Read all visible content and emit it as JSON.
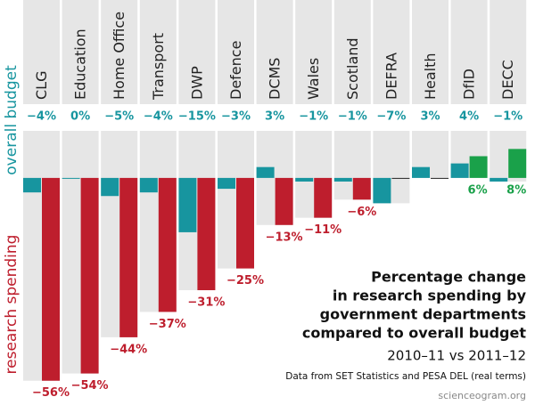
{
  "chart_data": {
    "type": "paired-bar",
    "title": [
      "Percentage change",
      "in research spending by",
      "government departments",
      "compared to overall budget"
    ],
    "subtitle": "2010–11 vs 2011–12",
    "source": "Data from SET Statistics and PESA DEL (real terms)",
    "credit": "scienceogram.org",
    "categories": [
      "CLG",
      "Education",
      "Home Office",
      "Transport",
      "DWP",
      "Defence",
      "DCMS",
      "Wales",
      "Scotland",
      "DEFRA",
      "Health",
      "DfID",
      "DECC"
    ],
    "ylim": [
      -60,
      13
    ],
    "series": [
      {
        "name": "overall budget",
        "color": "#17959f",
        "values": [
          -4,
          0,
          -5,
          -4,
          -15,
          -3,
          3,
          -1,
          -1,
          -7,
          3,
          4,
          -1
        ],
        "value_labels": [
          "−4%",
          "0%",
          "−5%",
          "−4%",
          "−15%",
          "−3%",
          "3%",
          "−1%",
          "−1%",
          "−7%",
          "3%",
          "4%",
          "−1%"
        ]
      },
      {
        "name": "research spending",
        "color": "#be1e2d",
        "positive_color": "#1aa14a",
        "values": [
          -56,
          -54,
          -44,
          -37,
          -31,
          -25,
          -13,
          -11,
          -6,
          0,
          0,
          6,
          8
        ],
        "value_labels": [
          "−56%",
          "−54%",
          "−44%",
          "−37%",
          "−31%",
          "−25%",
          "−13%",
          "−11%",
          "−6%",
          null,
          null,
          "6%",
          "8%"
        ]
      }
    ]
  }
}
